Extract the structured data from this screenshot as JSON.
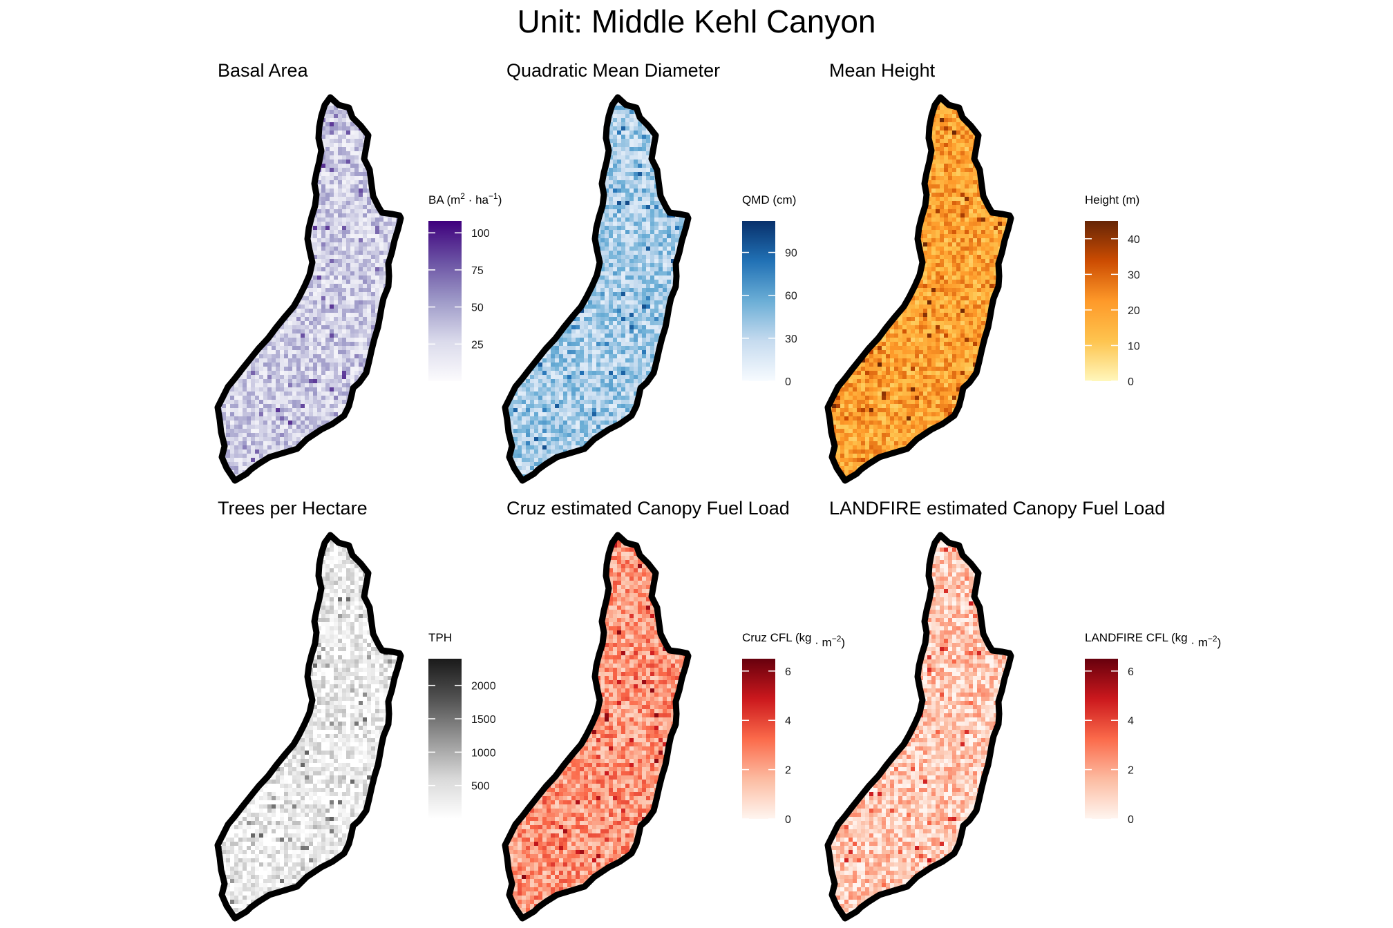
{
  "title": "Unit: Middle Kehl Canyon",
  "panels": [
    {
      "id": "basal-area",
      "title": "Basal Area",
      "legend": {
        "main": "BA (m",
        "parts": [
          {
            "t": "2",
            "sup": true
          },
          {
            "t": " · ha",
            "sup": false
          },
          {
            "t": "−1",
            "sup": true
          },
          {
            "t": ")",
            "sup": false
          }
        ]
      },
      "range": [
        0,
        108
      ],
      "ticks": [
        100,
        75,
        50,
        25
      ],
      "colors": [
        "#fcfbfd",
        "#dadaeb",
        "#9e9ac8",
        "#6a51a3",
        "#3f007d"
      ],
      "mean": 0.28
    },
    {
      "id": "qmd",
      "title": "Quadratic Mean Diameter",
      "legend": {
        "main": "QMD (cm)",
        "parts": []
      },
      "range": [
        0,
        112
      ],
      "ticks": [
        90,
        60,
        30,
        0
      ],
      "colors": [
        "#f7fbff",
        "#c6dbef",
        "#6baed6",
        "#2171b5",
        "#08306b"
      ],
      "mean": 0.33
    },
    {
      "id": "mean-height",
      "title": "Mean Height",
      "legend": {
        "main": "Height (m)",
        "parts": []
      },
      "range": [
        0,
        45
      ],
      "ticks": [
        40,
        30,
        20,
        10,
        0
      ],
      "colors": [
        "#fff7bc",
        "#fec44f",
        "#fe9929",
        "#cc4c02",
        "#662506"
      ],
      "mean": 0.42
    },
    {
      "id": "tph",
      "title": "Trees per Hectare",
      "legend": {
        "main": "TPH",
        "parts": []
      },
      "range": [
        0,
        2400
      ],
      "ticks": [
        2000,
        1500,
        1000,
        500
      ],
      "colors": [
        "#ffffff",
        "#d9d9d9",
        "#969696",
        "#525252",
        "#1a1a1a"
      ],
      "mean": 0.12
    },
    {
      "id": "cruz-cfl",
      "title": "Cruz estimated Canopy Fuel Load",
      "legend": {
        "main": "Cruz CFL (kg",
        "parts": [
          {
            "t": " · m",
            "sup": false
          },
          {
            "t": "−2",
            "sup": true
          },
          {
            "t": ")",
            "sup": false
          }
        ]
      },
      "range": [
        0,
        6.5
      ],
      "ticks": [
        6,
        4,
        2,
        0
      ],
      "colors": [
        "#fff5f0",
        "#fcbba1",
        "#fb6a4a",
        "#cb181d",
        "#67000d"
      ],
      "mean": 0.36
    },
    {
      "id": "landfire-cfl",
      "title": "LANDFIRE estimated Canopy Fuel Load",
      "legend": {
        "main": "LANDFIRE CFL (kg",
        "parts": [
          {
            "t": " · m",
            "sup": false
          },
          {
            "t": "−2",
            "sup": true
          },
          {
            "t": ")",
            "sup": false
          }
        ]
      },
      "range": [
        0,
        6.5
      ],
      "ticks": [
        6,
        4,
        2,
        0
      ],
      "colors": [
        "#fff5f0",
        "#fcbba1",
        "#fb6a4a",
        "#cb181d",
        "#67000d"
      ],
      "mean": 0.18
    }
  ]
}
